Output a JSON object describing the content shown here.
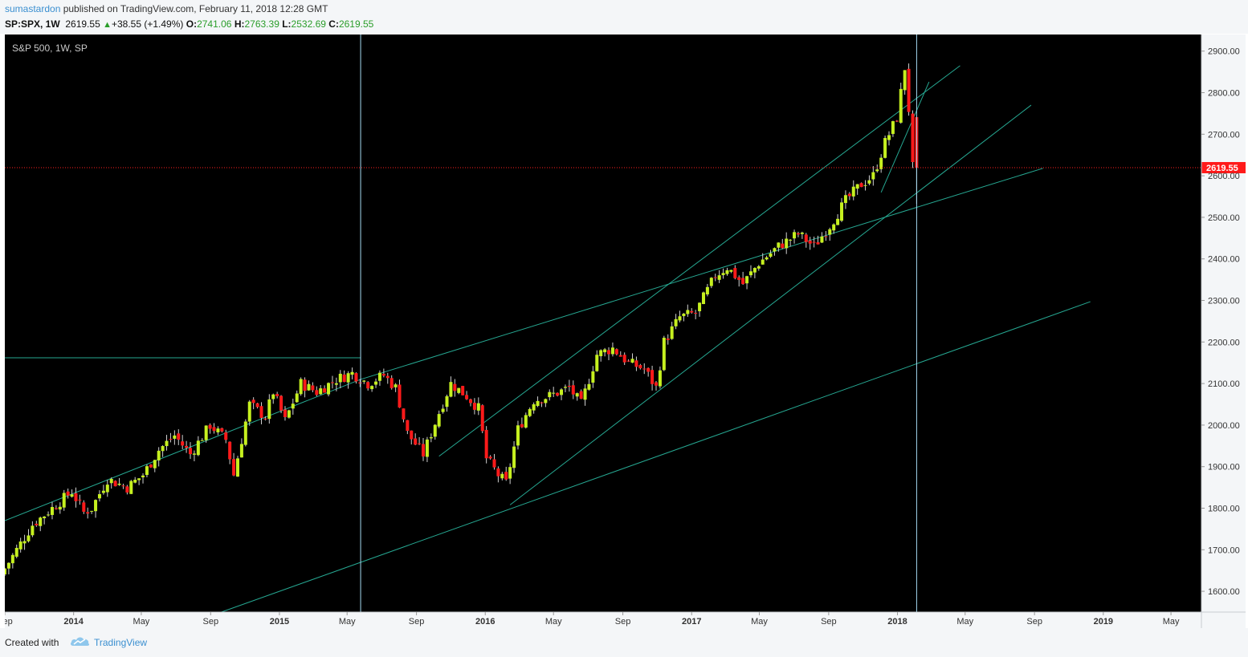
{
  "header": {
    "author": "sumastardon",
    "published_text": " published on TradingView.com, February 11, 2018 12:28 GMT",
    "symbol": "SP:SPX, 1W",
    "last": "2619.55",
    "change": "+38.55 (+1.49%)",
    "o_label": "O:",
    "o_value": "2741.06",
    "h_label": "H:",
    "h_value": "2763.39",
    "l_label": "L:",
    "l_value": "2532.69",
    "c_label": "C:",
    "c_value": "2619.55"
  },
  "colors": {
    "background": "#000000",
    "up": "#c6f01f",
    "down": "#ff1a1a",
    "trendline": "#26a892",
    "vline": "#a6dcf4",
    "price_line": "#ff2020",
    "axis_text": "#333333"
  },
  "footer": {
    "created_with": "Created with",
    "brand": "TradingView",
    "logo_icon": "tradingview-cloud-icon"
  },
  "chart_data": {
    "type": "candlestick",
    "title": "S&P 500, 1W, SP",
    "interval": "1W",
    "ylim": [
      1550,
      2940
    ],
    "y_ticks": [
      1600,
      1700,
      1800,
      1900,
      2000,
      2100,
      2200,
      2300,
      2400,
      2500,
      2600,
      2700,
      2800,
      2900
    ],
    "y_tick_labels": [
      "1600.00",
      "1700.00",
      "1800.00",
      "1900.00",
      "2000.00",
      "2100.00",
      "2200.00",
      "2300.00",
      "2400.00",
      "2500.00",
      "2600.00",
      "2700.00",
      "2800.00",
      "2900.00"
    ],
    "x_range": [
      "2013-09-01",
      "2019-06-24"
    ],
    "x_ticks": [
      {
        "label": "Sep",
        "date": "2013-09-01"
      },
      {
        "label": "2014",
        "date": "2014-01-01"
      },
      {
        "label": "May",
        "date": "2014-05-01"
      },
      {
        "label": "Sep",
        "date": "2014-09-01"
      },
      {
        "label": "2015",
        "date": "2015-01-01"
      },
      {
        "label": "May",
        "date": "2015-05-01"
      },
      {
        "label": "Sep",
        "date": "2015-09-01"
      },
      {
        "label": "2016",
        "date": "2016-01-01"
      },
      {
        "label": "May",
        "date": "2016-05-01"
      },
      {
        "label": "Sep",
        "date": "2016-09-01"
      },
      {
        "label": "2017",
        "date": "2017-01-01"
      },
      {
        "label": "May",
        "date": "2017-05-01"
      },
      {
        "label": "Sep",
        "date": "2017-09-01"
      },
      {
        "label": "2018",
        "date": "2018-01-01"
      },
      {
        "label": "May",
        "date": "2018-05-01"
      },
      {
        "label": "Sep",
        "date": "2018-09-01"
      },
      {
        "label": "2019",
        "date": "2019-01-01"
      },
      {
        "label": "May",
        "date": "2019-05-01"
      }
    ],
    "last_price": 2619.55,
    "last_price_label": "2619.55",
    "price_path": [
      [
        "2013-09-01",
        1640
      ],
      [
        "2013-09-29",
        1700
      ],
      [
        "2013-10-27",
        1760
      ],
      [
        "2013-12-01",
        1800
      ],
      [
        "2014-01-05",
        1840
      ],
      [
        "2014-01-26",
        1790
      ],
      [
        "2014-02-09",
        1800
      ],
      [
        "2014-03-09",
        1870
      ],
      [
        "2014-04-13",
        1850
      ],
      [
        "2014-05-11",
        1880
      ],
      [
        "2014-06-08",
        1940
      ],
      [
        "2014-07-06",
        1975
      ],
      [
        "2014-08-03",
        1930
      ],
      [
        "2014-09-07",
        2000
      ],
      [
        "2014-10-05",
        1965
      ],
      [
        "2014-10-19",
        1880
      ],
      [
        "2014-11-16",
        2050
      ],
      [
        "2014-12-14",
        2020
      ],
      [
        "2014-12-28",
        2080
      ],
      [
        "2015-01-18",
        2010
      ],
      [
        "2015-02-15",
        2100
      ],
      [
        "2015-03-15",
        2080
      ],
      [
        "2015-04-19",
        2110
      ],
      [
        "2015-05-17",
        2125
      ],
      [
        "2015-06-14",
        2100
      ],
      [
        "2015-07-12",
        2120
      ],
      [
        "2015-08-02",
        2090
      ],
      [
        "2015-08-23",
        1980
      ],
      [
        "2015-09-20",
        1930
      ],
      [
        "2015-10-18",
        2030
      ],
      [
        "2015-11-08",
        2100
      ],
      [
        "2015-12-06",
        2070
      ],
      [
        "2015-12-27",
        2040
      ],
      [
        "2016-01-10",
        1920
      ],
      [
        "2016-01-31",
        1880
      ],
      [
        "2016-02-14",
        1860
      ],
      [
        "2016-03-06",
        1990
      ],
      [
        "2016-04-03",
        2060
      ],
      [
        "2016-05-01",
        2070
      ],
      [
        "2016-06-05",
        2090
      ],
      [
        "2016-06-26",
        2050
      ],
      [
        "2016-07-24",
        2170
      ],
      [
        "2016-08-21",
        2185
      ],
      [
        "2016-09-18",
        2150
      ],
      [
        "2016-10-16",
        2135
      ],
      [
        "2016-11-06",
        2090
      ],
      [
        "2016-11-20",
        2200
      ],
      [
        "2016-12-18",
        2260
      ],
      [
        "2017-01-15",
        2270
      ],
      [
        "2017-02-19",
        2360
      ],
      [
        "2017-03-12",
        2380
      ],
      [
        "2017-04-09",
        2340
      ],
      [
        "2017-05-07",
        2390
      ],
      [
        "2017-06-11",
        2430
      ],
      [
        "2017-07-16",
        2460
      ],
      [
        "2017-08-13",
        2430
      ],
      [
        "2017-09-10",
        2480
      ],
      [
        "2017-10-08",
        2540
      ],
      [
        "2017-11-05",
        2580
      ],
      [
        "2017-11-26",
        2600
      ],
      [
        "2017-12-17",
        2680
      ],
      [
        "2018-01-07",
        2740
      ],
      [
        "2018-01-21",
        2860
      ],
      [
        "2018-01-28",
        2760
      ],
      [
        "2018-02-04",
        2620
      ]
    ],
    "trendlines": [
      {
        "from": [
          "2013-09-01",
          1770
        ],
        "to": [
          "2015-05-25",
          2110
        ]
      },
      {
        "from": [
          "2015-05-25",
          2110
        ],
        "to": [
          "2018-09-16",
          2618
        ]
      },
      {
        "from": [
          "2013-09-01",
          2162
        ],
        "to": [
          "2015-05-25",
          2162
        ]
      },
      {
        "from": [
          "2014-09-20",
          1550
        ],
        "to": [
          "2018-12-09",
          2297
        ]
      },
      {
        "from": [
          "2015-10-11",
          1925
        ],
        "to": [
          "2018-04-22",
          2865
        ]
      },
      {
        "from": [
          "2016-02-14",
          1808
        ],
        "to": [
          "2018-08-26",
          2770
        ]
      },
      {
        "from": [
          "2017-12-03",
          2560
        ],
        "to": [
          "2018-02-26",
          2826
        ]
      }
    ],
    "vertical_lines": [
      "2015-05-25",
      "2018-02-04"
    ]
  }
}
